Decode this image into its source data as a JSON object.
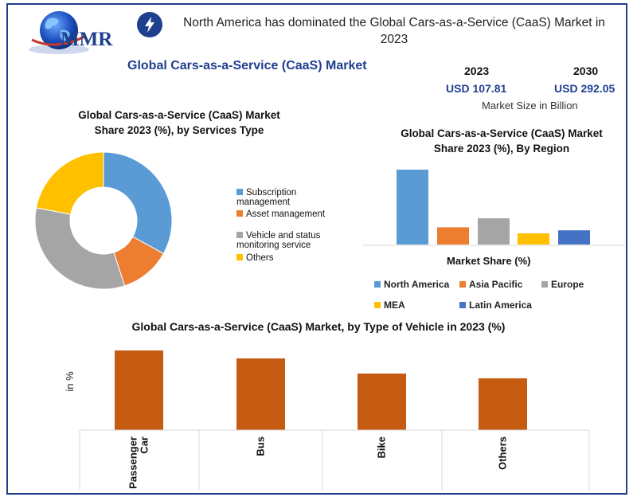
{
  "brand": {
    "name": "MMR"
  },
  "headline": "North America has dominated the Global Cars-as-a-Service (CaaS) Market in 2023",
  "main_title": "Global Cars-as-a-Service (CaaS) Market",
  "market_size": {
    "year_a": "2023",
    "value_a": "USD 107.81",
    "year_b": "2030",
    "value_b": "USD 292.05",
    "note": "Market Size in Billion"
  },
  "icons": {
    "logo": "globe-icon",
    "headline": "lightning-bolt-icon"
  },
  "colors": {
    "blue": "#5b9bd5",
    "orange": "#ed7d31",
    "gray": "#a5a5a5",
    "yellow": "#ffc000",
    "dark_blue": "#4472c4",
    "rust": "#c55a11",
    "navy": "#1f3f8f"
  },
  "chart_data": [
    {
      "type": "pie",
      "title": "Global Cars-as-a-Service (CaaS) Market Share 2023 (%), by Services Type",
      "donut": true,
      "legend_position": "right",
      "categories": [
        "Subscription management",
        "Asset management",
        "Vehicle and status monitoring service",
        "Others"
      ],
      "values": [
        33,
        12,
        33,
        22
      ],
      "colors": [
        "#5b9bd5",
        "#ed7d31",
        "#a5a5a5",
        "#ffc000"
      ]
    },
    {
      "type": "bar",
      "title": "Global Cars-as-a-Service (CaaS) Market Share 2023 (%), By Region",
      "xlabel": "Market Share (%)",
      "legend_position": "bottom",
      "categories": [
        "North America",
        "Asia Pacific",
        "Europe",
        "MEA",
        "Latin America"
      ],
      "values": [
        100,
        23,
        35,
        15,
        19
      ],
      "colors": [
        "#5b9bd5",
        "#ed7d31",
        "#a5a5a5",
        "#ffc000",
        "#4472c4"
      ],
      "ylim": [
        0,
        100
      ]
    },
    {
      "type": "bar",
      "title": "Global Cars-as-a-Service (CaaS) Market, by Type of Vehicle in 2023 (%)",
      "ylabel": "in %",
      "categories": [
        "Passenger Car",
        "Bus",
        "Bike",
        "Others"
      ],
      "tick_labels": [
        [
          "Passenger",
          "Car"
        ],
        [
          "Bus"
        ],
        [
          "Bike"
        ],
        [
          "Others"
        ]
      ],
      "values": [
        100,
        90,
        71,
        65
      ],
      "color": "#c55a11",
      "ylim": [
        0,
        100
      ]
    }
  ]
}
